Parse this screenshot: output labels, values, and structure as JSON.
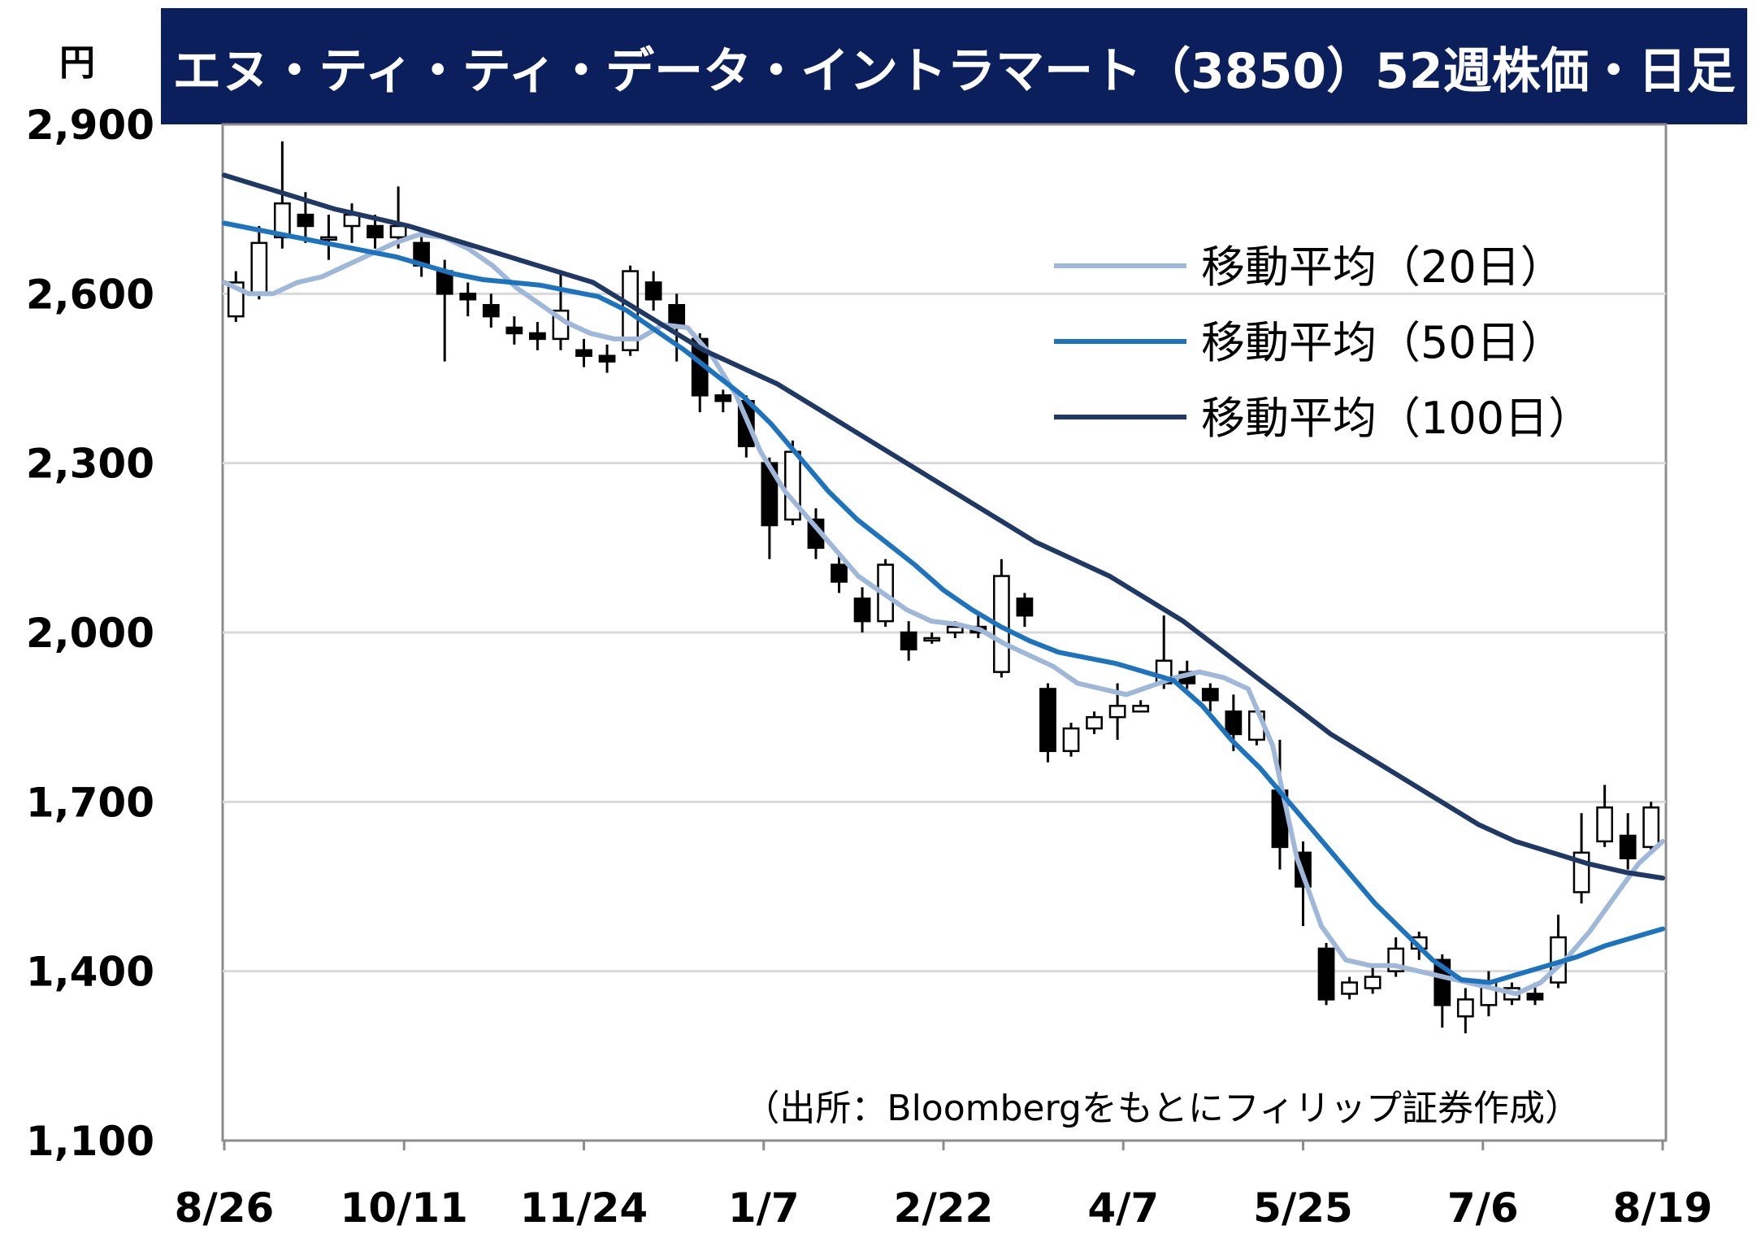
{
  "chart_data": {
    "type": "candlestick",
    "title": "エヌ・ティ・ティ・データ・イントラマート（3850）52週株価・日足",
    "ylabel": "円",
    "ylim": [
      1100,
      2900
    ],
    "yticks": [
      "1,100",
      "1,400",
      "1,700",
      "2,000",
      "2,300",
      "2,600",
      "2,900"
    ],
    "xticks": [
      "8/26",
      "10/11",
      "11/24",
      "1/7",
      "2/22",
      "4/7",
      "5/25",
      "7/6",
      "8/19"
    ],
    "source_note": "（出所：Bloombergをもとにフィリップ証券作成）",
    "grid": true,
    "legend_position": "top-right",
    "colors": {
      "title_bg": "#0b1f5c",
      "title_text": "#ffffff",
      "candle_body_up": "#ffffff",
      "candle_body_down": "#000000",
      "grid": "#d9d9d9"
    },
    "series": [
      {
        "name": "移動平均（20日）",
        "color": "#9fb7d9",
        "values": [
          2620,
          2600,
          2600,
          2620,
          2630,
          2650,
          2670,
          2690,
          2705,
          2700,
          2680,
          2650,
          2610,
          2580,
          2550,
          2530,
          2520,
          2520,
          2545,
          2540,
          2490,
          2420,
          2320,
          2250,
          2200,
          2150,
          2100,
          2070,
          2040,
          2020,
          2015,
          2005,
          1980,
          1960,
          1940,
          1910,
          1900,
          1890,
          1905,
          1920,
          1930,
          1920,
          1900,
          1800,
          1600,
          1480,
          1420,
          1410,
          1410,
          1400,
          1390,
          1380,
          1370,
          1360,
          1380,
          1420,
          1470,
          1530,
          1590,
          1630
        ]
      },
      {
        "name": "移動平均（50日）",
        "color": "#1e73be",
        "values": [
          2725,
          2715,
          2705,
          2695,
          2685,
          2675,
          2665,
          2650,
          2635,
          2625,
          2620,
          2615,
          2605,
          2595,
          2570,
          2535,
          2500,
          2460,
          2420,
          2370,
          2310,
          2250,
          2200,
          2160,
          2120,
          2075,
          2040,
          2010,
          1985,
          1965,
          1955,
          1945,
          1930,
          1915,
          1870,
          1810,
          1760,
          1700,
          1640,
          1580,
          1520,
          1470,
          1420,
          1385,
          1380,
          1395,
          1410,
          1425,
          1445,
          1460,
          1475
        ]
      },
      {
        "name": "移動平均（100日）",
        "color": "#1f3864",
        "values": [
          2810,
          2790,
          2770,
          2750,
          2735,
          2720,
          2700,
          2680,
          2660,
          2640,
          2620,
          2580,
          2540,
          2500,
          2470,
          2440,
          2400,
          2360,
          2320,
          2280,
          2240,
          2200,
          2160,
          2130,
          2100,
          2060,
          2020,
          1970,
          1920,
          1870,
          1820,
          1780,
          1740,
          1700,
          1660,
          1630,
          1610,
          1590,
          1575,
          1565
        ]
      }
    ],
    "candles": [
      [
        2560,
        2620,
        2550,
        2640
      ],
      [
        2600,
        2690,
        2590,
        2720
      ],
      [
        2700,
        2760,
        2680,
        2870
      ],
      [
        2740,
        2720,
        2690,
        2780
      ],
      [
        2700,
        2700,
        2660,
        2740
      ],
      [
        2720,
        2740,
        2690,
        2760
      ],
      [
        2720,
        2700,
        2680,
        2740
      ],
      [
        2700,
        2720,
        2680,
        2790
      ],
      [
        2690,
        2650,
        2630,
        2710
      ],
      [
        2640,
        2600,
        2480,
        2660
      ],
      [
        2600,
        2590,
        2560,
        2620
      ],
      [
        2580,
        2560,
        2540,
        2600
      ],
      [
        2540,
        2530,
        2510,
        2560
      ],
      [
        2530,
        2520,
        2500,
        2550
      ],
      [
        2520,
        2570,
        2500,
        2640
      ],
      [
        2500,
        2490,
        2470,
        2520
      ],
      [
        2490,
        2480,
        2460,
        2510
      ],
      [
        2500,
        2640,
        2490,
        2650
      ],
      [
        2620,
        2590,
        2570,
        2640
      ],
      [
        2580,
        2540,
        2480,
        2600
      ],
      [
        2520,
        2420,
        2390,
        2530
      ],
      [
        2420,
        2410,
        2390,
        2430
      ],
      [
        2410,
        2330,
        2310,
        2420
      ],
      [
        2300,
        2190,
        2130,
        2310
      ],
      [
        2200,
        2320,
        2190,
        2340
      ],
      [
        2200,
        2150,
        2130,
        2220
      ],
      [
        2120,
        2090,
        2070,
        2140
      ],
      [
        2060,
        2020,
        2000,
        2080
      ],
      [
        2020,
        2120,
        2010,
        2130
      ],
      [
        2000,
        1970,
        1950,
        2020
      ],
      [
        1990,
        1990,
        1980,
        2000
      ],
      [
        2000,
        2010,
        1990,
        2020
      ],
      [
        2010,
        2000,
        1990,
        2030
      ],
      [
        1930,
        2100,
        1920,
        2130
      ],
      [
        2060,
        2030,
        2010,
        2070
      ],
      [
        1900,
        1790,
        1770,
        1910
      ],
      [
        1790,
        1830,
        1780,
        1840
      ],
      [
        1830,
        1850,
        1820,
        1860
      ],
      [
        1850,
        1870,
        1810,
        1910
      ],
      [
        1860,
        1870,
        1860,
        1880
      ],
      [
        1910,
        1950,
        1900,
        2030
      ],
      [
        1930,
        1910,
        1900,
        1950
      ],
      [
        1900,
        1880,
        1860,
        1910
      ],
      [
        1860,
        1820,
        1790,
        1890
      ],
      [
        1810,
        1860,
        1800,
        1870
      ],
      [
        1720,
        1620,
        1580,
        1810
      ],
      [
        1610,
        1550,
        1480,
        1630
      ],
      [
        1440,
        1350,
        1340,
        1450
      ],
      [
        1360,
        1380,
        1350,
        1390
      ],
      [
        1370,
        1390,
        1360,
        1410
      ],
      [
        1400,
        1440,
        1390,
        1460
      ],
      [
        1440,
        1460,
        1420,
        1470
      ],
      [
        1420,
        1340,
        1300,
        1430
      ],
      [
        1320,
        1350,
        1290,
        1370
      ],
      [
        1340,
        1380,
        1320,
        1400
      ],
      [
        1350,
        1370,
        1340,
        1380
      ],
      [
        1360,
        1350,
        1340,
        1380
      ],
      [
        1380,
        1460,
        1370,
        1500
      ],
      [
        1540,
        1610,
        1520,
        1680
      ],
      [
        1630,
        1690,
        1620,
        1730
      ],
      [
        1640,
        1600,
        1580,
        1680
      ],
      [
        1620,
        1690,
        1610,
        1700
      ]
    ]
  }
}
